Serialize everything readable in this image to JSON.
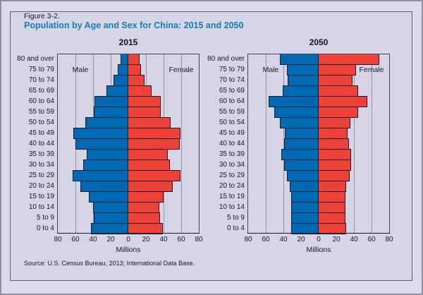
{
  "figure_label": "Figure 3-2.",
  "title": "Population by Age and Sex for China: 2015 and 2050",
  "source": "Source: U.S. Census Bureau, 2013; International Data Base.",
  "colors": {
    "male_bar": "#0069b4",
    "female_bar": "#ee4137",
    "bar_border": "#1c1c30",
    "panel_bg": "#d6d5e6",
    "page_bg": "#dcdbe9",
    "title_text": "#0e7dc2",
    "text": "#16162c",
    "gridline": "#9292a6",
    "frame": "#44445c"
  },
  "axis": {
    "xlabel": "Millions",
    "tick_labels": [
      "80",
      "60",
      "40",
      "20",
      "0",
      "20",
      "40",
      "60",
      "80"
    ],
    "max_millions": 80,
    "tick_step_millions": 20
  },
  "legend": {
    "male": "Male",
    "female": "Female"
  },
  "age_groups_top_to_bottom": [
    "80 and over",
    "75 to 79",
    "70 to 74",
    "65 to 69",
    "60 to 64",
    "55 to 59",
    "50 to 54",
    "45 to 49",
    "40 to 44",
    "35 to 39",
    "30 to 34",
    "25 to 29",
    "20 to 24",
    "15 to 19",
    "10 to 14",
    "5 to 9",
    "0 to 4"
  ],
  "chart_data": [
    {
      "type": "bar",
      "subtype": "population-pyramid",
      "title": "2015",
      "unit": "millions of people",
      "categories": [
        "80 and over",
        "75 to 79",
        "70 to 74",
        "65 to 69",
        "60 to 64",
        "55 to 59",
        "50 to 54",
        "45 to 49",
        "40 to 44",
        "35 to 39",
        "30 to 34",
        "25 to 29",
        "20 to 24",
        "15 to 19",
        "10 to 14",
        "5 to 9",
        "0 to 4"
      ],
      "series": [
        {
          "name": "Male",
          "side": "left",
          "values": [
            9,
            12,
            17,
            25,
            38,
            39,
            49,
            62,
            60,
            47,
            51,
            63,
            54,
            45,
            40,
            39,
            42
          ]
        },
        {
          "name": "Female",
          "side": "right",
          "values": [
            13,
            14,
            18,
            26,
            37,
            37,
            48,
            59,
            58,
            45,
            47,
            59,
            50,
            40,
            35,
            36,
            39
          ]
        }
      ],
      "xlabel": "Millions",
      "xlim": [
        -80,
        80
      ],
      "grid": true,
      "legend_position": "inside-top"
    },
    {
      "type": "bar",
      "subtype": "population-pyramid",
      "title": "2050",
      "unit": "millions of people",
      "categories": [
        "80 and over",
        "75 to 79",
        "70 to 74",
        "65 to 69",
        "60 to 64",
        "55 to 59",
        "50 to 54",
        "45 to 49",
        "40 to 44",
        "35 to 39",
        "30 to 34",
        "25 to 29",
        "20 to 24",
        "15 to 19",
        "10 to 14",
        "5 to 9",
        "0 to 4"
      ],
      "series": [
        {
          "name": "Male",
          "side": "left",
          "values": [
            44,
            36,
            35,
            41,
            57,
            50,
            44,
            38,
            39,
            42,
            39,
            36,
            33,
            31,
            31,
            31,
            31
          ]
        },
        {
          "name": "Female",
          "side": "right",
          "values": [
            69,
            42,
            38,
            45,
            55,
            45,
            36,
            33,
            34,
            37,
            37,
            35,
            31,
            30,
            30,
            30,
            31
          ]
        }
      ],
      "xlabel": "Millions",
      "xlim": [
        -80,
        80
      ],
      "grid": true,
      "legend_position": "inside-top"
    }
  ]
}
